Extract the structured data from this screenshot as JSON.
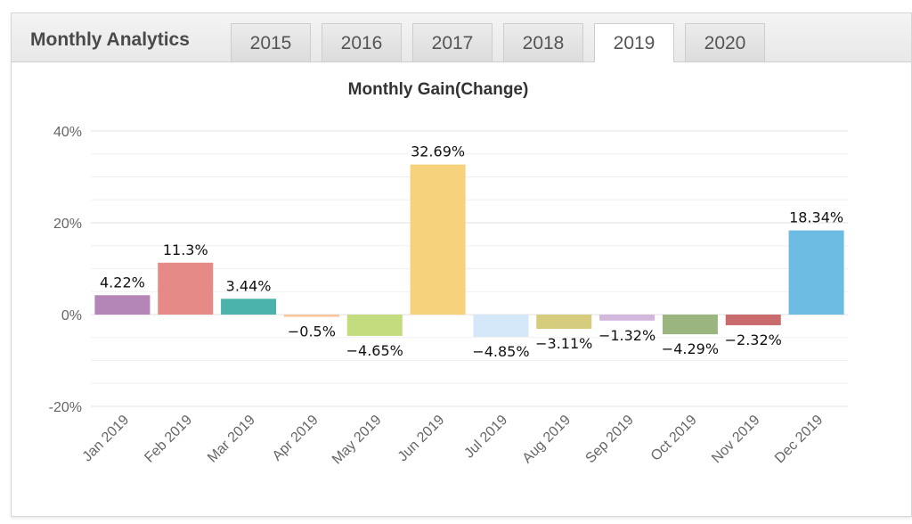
{
  "header": {
    "title": "Monthly Analytics",
    "tabs": [
      "2015",
      "2016",
      "2017",
      "2018",
      "2019",
      "2020"
    ],
    "active_tab": "2019"
  },
  "chart_data": {
    "type": "bar",
    "title": "Monthly Gain(Change)",
    "xlabel": "",
    "ylabel": "",
    "categories": [
      "Jan 2019",
      "Feb 2019",
      "Mar 2019",
      "Apr 2019",
      "May 2019",
      "Jun 2019",
      "Jul 2019",
      "Aug 2019",
      "Sep 2019",
      "Oct 2019",
      "Nov 2019",
      "Dec 2019"
    ],
    "values": [
      4.22,
      11.3,
      3.44,
      -0.5,
      -4.65,
      32.69,
      -4.85,
      -3.11,
      -1.32,
      -4.29,
      -2.32,
      18.34
    ],
    "data_labels": [
      "4.22%",
      "11.3%",
      "3.44%",
      "−0.5%",
      "−4.65%",
      "32.69%",
      "−4.85%",
      "−3.11%",
      "−1.32%",
      "−4.29%",
      "−2.32%",
      "18.34%"
    ],
    "ylim": [
      -20,
      40
    ],
    "yticks": [
      -20,
      0,
      20,
      40
    ],
    "ytick_labels": [
      "-20%",
      "0%",
      "20%",
      "40%"
    ],
    "grid": true,
    "legend": "none",
    "colors": [
      "#b486b8",
      "#e58a87",
      "#4cb2ac",
      "#f9c59a",
      "#c3dc7e",
      "#f6d27c",
      "#d4e8f9",
      "#d6cc7e",
      "#d2b8dc",
      "#9bb57e",
      "#c96a6c",
      "#6bbbe3"
    ]
  }
}
